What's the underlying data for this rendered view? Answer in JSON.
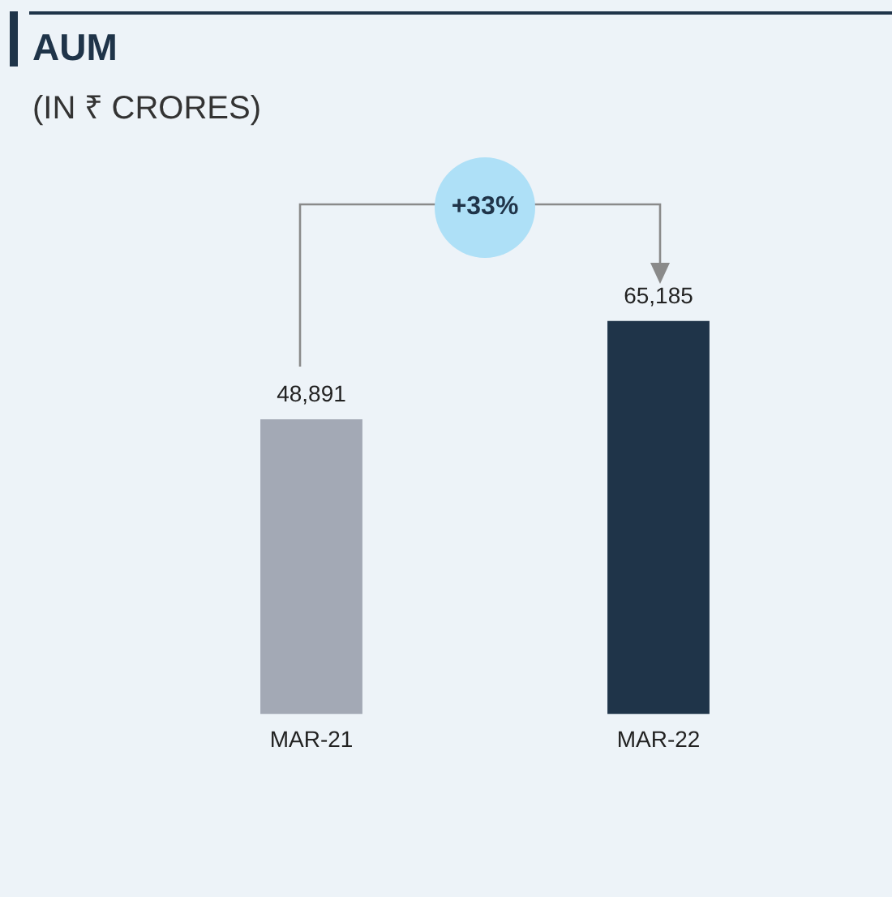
{
  "chart_data": {
    "type": "bar",
    "title": "AUM",
    "subtitle": "(IN ₹ CRORES)",
    "categories": [
      "MAR-21",
      "MAR-22"
    ],
    "values": [
      48891,
      65185
    ],
    "colors": [
      "#a3a9b5",
      "#1f3449"
    ],
    "value_labels": [
      "48,891",
      "65,185"
    ],
    "grid": false,
    "legend": false,
    "annotations": [
      "+33%"
    ]
  }
}
